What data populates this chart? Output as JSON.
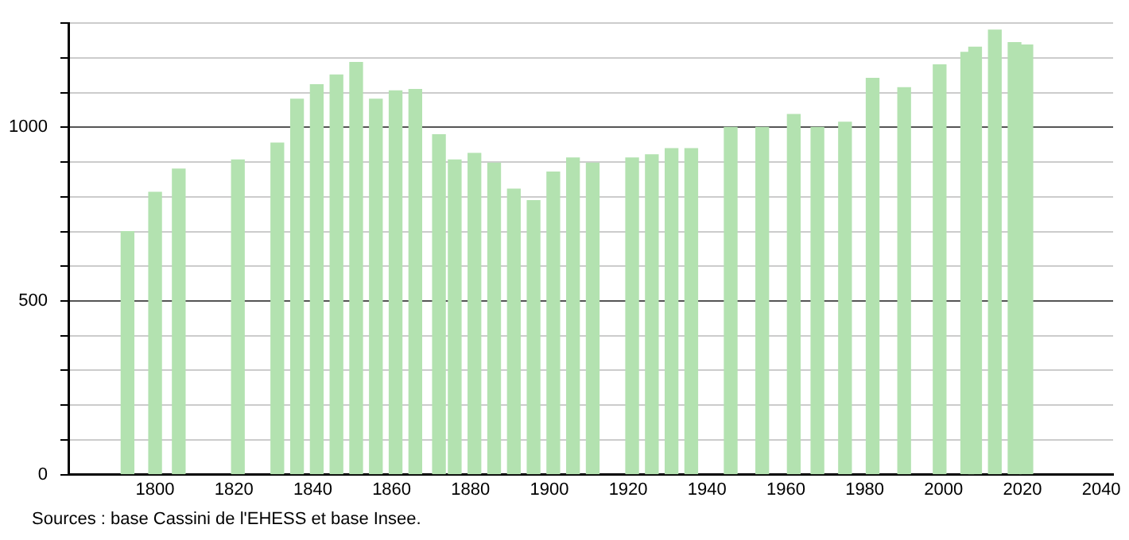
{
  "chart_data": {
    "type": "bar",
    "x": [
      1793,
      1800,
      1806,
      1821,
      1831,
      1836,
      1841,
      1846,
      1851,
      1856,
      1861,
      1866,
      1872,
      1876,
      1881,
      1886,
      1891,
      1896,
      1901,
      1906,
      1911,
      1921,
      1926,
      1931,
      1936,
      1946,
      1954,
      1962,
      1968,
      1975,
      1982,
      1990,
      1999,
      2006,
      2008,
      2013,
      2018,
      2021
    ],
    "values": [
      700,
      813,
      880,
      906,
      955,
      1081,
      1123,
      1151,
      1187,
      1081,
      1105,
      1109,
      979,
      906,
      925,
      897,
      822,
      789,
      871,
      912,
      897,
      912,
      921,
      939,
      939,
      1000,
      1000,
      1037,
      1000,
      1015,
      1141,
      1114,
      1180,
      1216,
      1231,
      1280,
      1244,
      1237
    ],
    "color": "#b3e2b0",
    "xlim": [
      1778,
      2043
    ],
    "xticks": [
      1800,
      1820,
      1840,
      1860,
      1880,
      1900,
      1920,
      1940,
      1960,
      1980,
      2000,
      2020,
      2040
    ],
    "ylim": [
      0,
      1300
    ],
    "yticks": [
      0,
      {
        "value": 100,
        "label": null
      },
      {
        "value": 200,
        "label": null
      },
      {
        "value": 300,
        "label": null
      },
      {
        "value": 400,
        "label": null
      },
      500,
      {
        "value": 600,
        "label": null
      },
      {
        "value": 700,
        "label": null
      },
      {
        "value": 800,
        "label": null
      },
      {
        "value": 900,
        "label": null
      },
      1000,
      {
        "value": 1100,
        "label": null
      },
      {
        "value": 1200,
        "label": null
      },
      {
        "value": 1300,
        "label": null
      }
    ],
    "grid": "y",
    "annotations": [
      "Sources : base Cassini de l'EHESS et base Insee."
    ]
  }
}
